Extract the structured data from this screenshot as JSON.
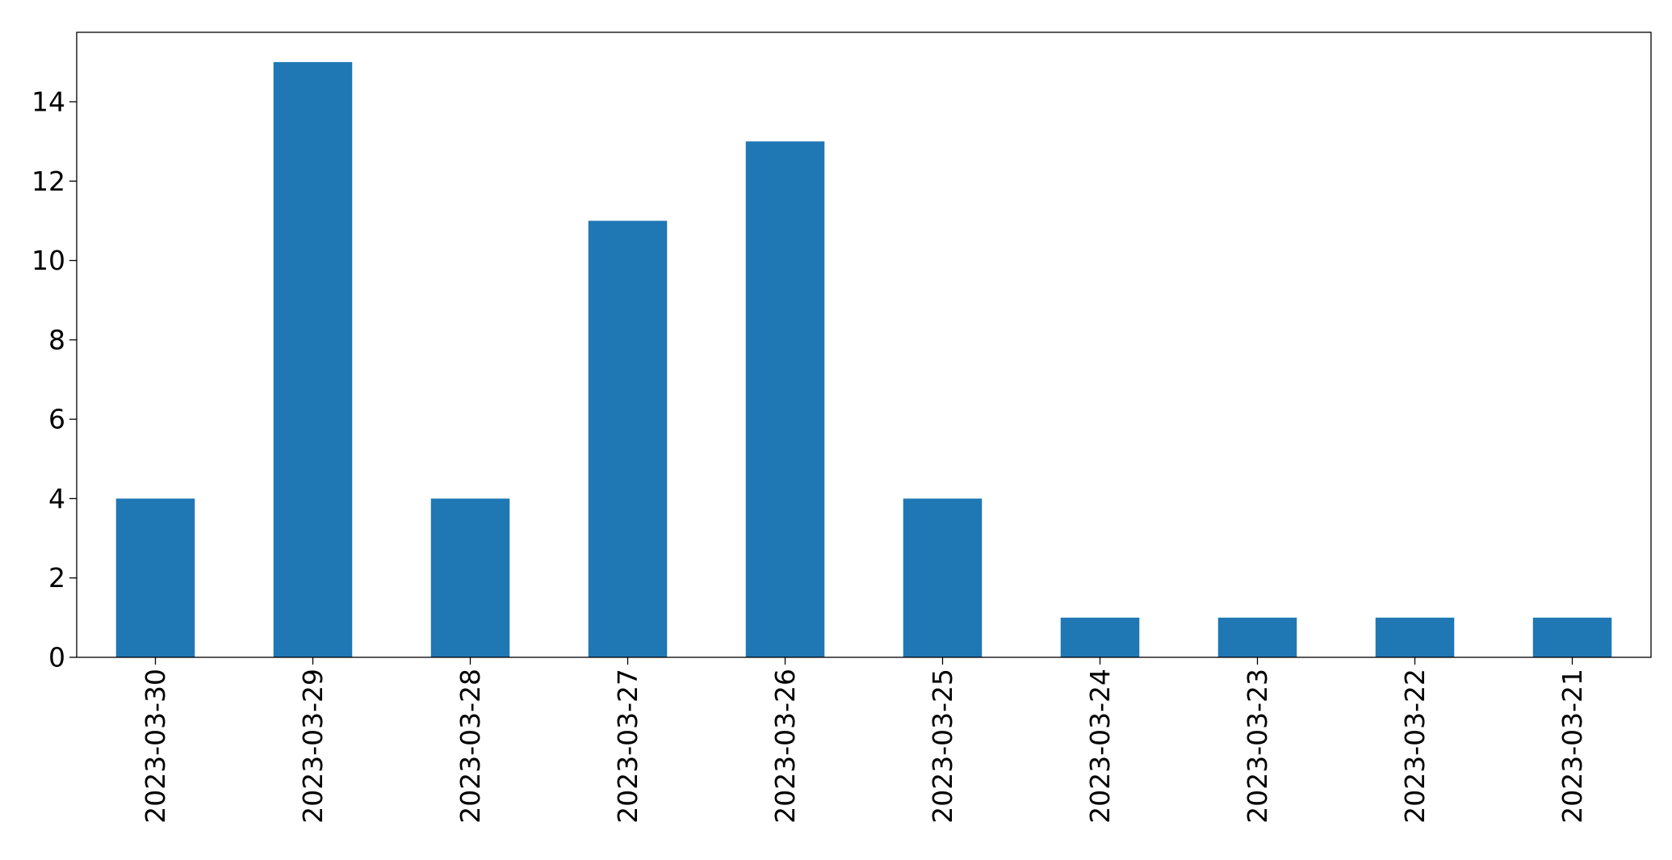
{
  "chart_data": {
    "type": "bar",
    "title": "",
    "xlabel": "",
    "ylabel": "",
    "categories": [
      "2023-03-30",
      "2023-03-29",
      "2023-03-28",
      "2023-03-27",
      "2023-03-26",
      "2023-03-25",
      "2023-03-24",
      "2023-03-23",
      "2023-03-22",
      "2023-03-21"
    ],
    "values": [
      4,
      15,
      4,
      11,
      13,
      4,
      1,
      1,
      1,
      1
    ],
    "ylim": [
      0,
      15.75
    ],
    "yticks": [
      0,
      2,
      4,
      6,
      8,
      10,
      12,
      14
    ],
    "grid": false,
    "legend": "none",
    "bar_color": "#1f77b4"
  }
}
